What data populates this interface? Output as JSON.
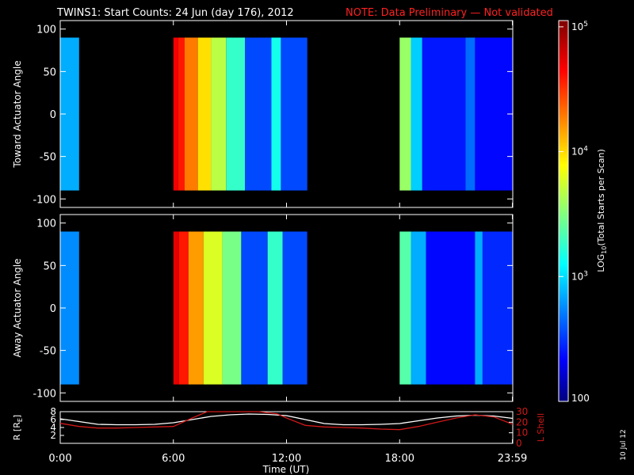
{
  "title": {
    "main": "TWINS1: Start Counts: 24 Jun (day 176), 2012",
    "note": "NOTE: Data Preliminary — Not validated"
  },
  "side_date": "10 Jul 12",
  "colors": {
    "title_note": "#ff2020",
    "frame": "#ffffff",
    "background": "#000000",
    "lshell": "#d01818",
    "radius": "#ffffff"
  },
  "chart_data": [
    {
      "type": "heatmap",
      "ylabel": "Toward Actuator Angle",
      "yticks": [
        100,
        50,
        0,
        -50,
        -100
      ],
      "ylim": [
        -110,
        110
      ],
      "xlim_hours": [
        0,
        24
      ],
      "data_range_deg": [
        -90,
        90
      ],
      "coverage_blocks_ut": [
        [
          "0:00",
          "1:00"
        ],
        [
          "6:00",
          "13:10"
        ],
        [
          "18:00",
          "24:00"
        ]
      ],
      "log_counts_bands": [
        {
          "hours": [
            0.0,
            1.0
          ],
          "log10_value": 2.9
        },
        {
          "hours": [
            6.0,
            6.25
          ],
          "log10_value": 4.7
        },
        {
          "hours": [
            6.25,
            6.6
          ],
          "log10_value": 4.6
        },
        {
          "hours": [
            6.6,
            7.3
          ],
          "log10_value": 4.3
        },
        {
          "hours": [
            7.3,
            8.0
          ],
          "log10_value": 4.0
        },
        {
          "hours": [
            8.0,
            8.8
          ],
          "log10_value": 3.7
        },
        {
          "hours": [
            8.8,
            9.8
          ],
          "log10_value": 3.3
        },
        {
          "hours": [
            9.8,
            11.2
          ],
          "log10_value": 2.6
        },
        {
          "hours": [
            11.2,
            11.7
          ],
          "log10_value": 3.2
        },
        {
          "hours": [
            11.7,
            13.1
          ],
          "log10_value": 2.6
        },
        {
          "hours": [
            18.0,
            18.6
          ],
          "log10_value": 3.6
        },
        {
          "hours": [
            18.6,
            19.2
          ],
          "log10_value": 3.0
        },
        {
          "hours": [
            19.2,
            21.5
          ],
          "log10_value": 2.45
        },
        {
          "hours": [
            21.5,
            22.0
          ],
          "log10_value": 2.7
        },
        {
          "hours": [
            22.0,
            24.0
          ],
          "log10_value": 2.4
        }
      ]
    },
    {
      "type": "heatmap",
      "ylabel": "Away Actuator Angle",
      "yticks": [
        100,
        50,
        0,
        -50,
        -100
      ],
      "ylim": [
        -110,
        110
      ],
      "xlim_hours": [
        0,
        24
      ],
      "data_range_deg": [
        -90,
        90
      ],
      "coverage_blocks_ut": [
        [
          "0:00",
          "1:00"
        ],
        [
          "6:00",
          "13:10"
        ],
        [
          "18:00",
          "24:00"
        ]
      ],
      "log_counts_bands": [
        {
          "hours": [
            0.0,
            1.0
          ],
          "log10_value": 2.8
        },
        {
          "hours": [
            6.0,
            6.3
          ],
          "log10_value": 4.75
        },
        {
          "hours": [
            6.3,
            6.8
          ],
          "log10_value": 4.6
        },
        {
          "hours": [
            6.8,
            7.6
          ],
          "log10_value": 4.2
        },
        {
          "hours": [
            7.6,
            8.6
          ],
          "log10_value": 3.8
        },
        {
          "hours": [
            8.6,
            9.6
          ],
          "log10_value": 3.5
        },
        {
          "hours": [
            9.6,
            11.0
          ],
          "log10_value": 2.6
        },
        {
          "hours": [
            11.0,
            11.8
          ],
          "log10_value": 3.3
        },
        {
          "hours": [
            11.8,
            13.1
          ],
          "log10_value": 2.6
        },
        {
          "hours": [
            18.0,
            18.6
          ],
          "log10_value": 3.4
        },
        {
          "hours": [
            18.6,
            19.4
          ],
          "log10_value": 2.9
        },
        {
          "hours": [
            19.4,
            22.0
          ],
          "log10_value": 2.4
        },
        {
          "hours": [
            22.0,
            22.4
          ],
          "log10_value": 2.9
        },
        {
          "hours": [
            22.4,
            24.0
          ],
          "log10_value": 2.5
        }
      ]
    },
    {
      "type": "line",
      "xlabel": "Time (UT)",
      "xticks": [
        "0:00",
        "6:00",
        "12:00",
        "18:00",
        "23:59"
      ],
      "xtick_hours": [
        0,
        6,
        12,
        18,
        23.98
      ],
      "ylabel_left": "R [RE]",
      "ylabel_left_main": "R [R",
      "ylabel_left_sub": "E",
      "ylabel_left_close": "]",
      "yticks_left": [
        8,
        6,
        4,
        2
      ],
      "ylim_left": [
        0,
        8
      ],
      "ylabel_right": "L Shell",
      "yticks_right": [
        30,
        20,
        10,
        0
      ],
      "ylim_right": [
        0,
        30
      ],
      "series": [
        {
          "name": "R [RE]",
          "axis": "left",
          "x": [
            0,
            1,
            2,
            3,
            4,
            5,
            6,
            7,
            8,
            9,
            10,
            11,
            12,
            13,
            14,
            15,
            16,
            17,
            18,
            19,
            20,
            21,
            22,
            23,
            24
          ],
          "values": [
            6.2,
            5.5,
            4.8,
            4.7,
            4.7,
            4.8,
            5.2,
            6.0,
            6.8,
            7.2,
            7.4,
            7.3,
            7.0,
            6.0,
            5.0,
            4.7,
            4.7,
            4.8,
            5.0,
            5.7,
            6.4,
            6.9,
            7.1,
            6.9,
            6.3
          ]
        },
        {
          "name": "L Shell",
          "axis": "right",
          "x": [
            0,
            1,
            2,
            3,
            4,
            5,
            6,
            7,
            7.8,
            10.5,
            11.5,
            12,
            13,
            14,
            15,
            16,
            17,
            18,
            19,
            20,
            21,
            22,
            23,
            24
          ],
          "values": [
            19,
            16,
            14.5,
            14.5,
            15,
            15.5,
            16,
            24,
            31,
            31,
            28,
            24,
            17,
            15.5,
            15,
            14.5,
            13.5,
            13,
            16,
            20,
            24,
            27,
            25,
            18
          ]
        }
      ]
    }
  ],
  "colorbar": {
    "label_main": "LOG",
    "label_sub": "10",
    "label_rest": "(Total Starts per Scan)",
    "ticks": [
      "10^5",
      "10^4",
      "10^3",
      "100"
    ],
    "tick_log10": [
      5,
      4,
      3,
      2
    ],
    "range_log10": [
      2,
      5.05
    ]
  }
}
